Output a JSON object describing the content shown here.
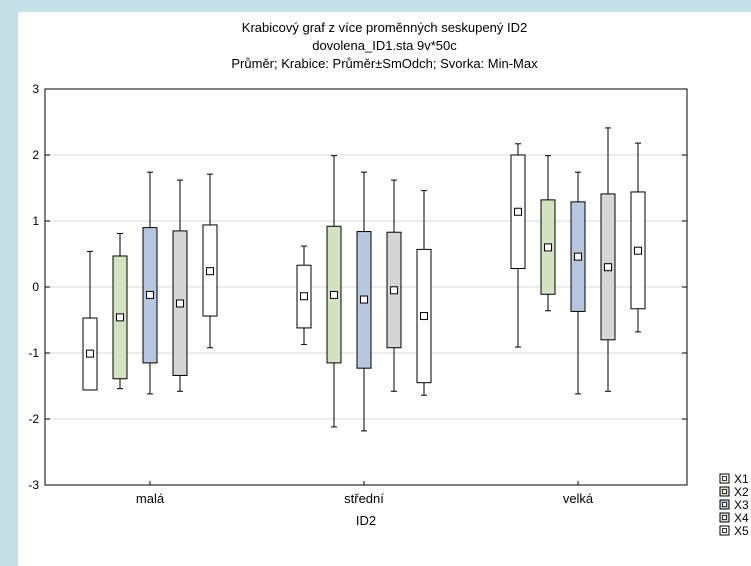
{
  "chart_data": {
    "type": "boxplot",
    "title": "Krabicový graf z více proměnných seskupený ID2",
    "subtitle": "dovolena_ID1.sta 9v*50c",
    "description": "Průměr; Krabice: Průměr±SmOdch; Svorka: Min-Max",
    "xlabel": "ID2",
    "ylabel": "",
    "ylim": [
      -3,
      3
    ],
    "yticks": [
      3,
      2,
      1,
      0,
      -1,
      -2,
      -3
    ],
    "grid": true,
    "legend_position": "bottom-right",
    "categories": [
      "malá",
      "střední",
      "velká"
    ],
    "series": [
      {
        "name": "X1",
        "color": "#ffffff",
        "values": [
          {
            "min": -1.56,
            "q1": -1.56,
            "mean": -1.01,
            "q3": -0.47,
            "max": 0.54
          },
          {
            "min": -0.87,
            "q1": -0.62,
            "mean": -0.14,
            "q3": 0.33,
            "max": 0.62
          },
          {
            "min": -0.91,
            "q1": 0.28,
            "mean": 1.14,
            "q3": 2.0,
            "max": 2.17
          }
        ]
      },
      {
        "name": "X2",
        "color": "#d4e2c2",
        "values": [
          {
            "min": -1.54,
            "q1": -1.39,
            "mean": -0.46,
            "q3": 0.47,
            "max": 0.81
          },
          {
            "min": -2.12,
            "q1": -1.15,
            "mean": -0.12,
            "q3": 0.92,
            "max": 1.99
          },
          {
            "min": -0.36,
            "q1": -0.11,
            "mean": 0.6,
            "q3": 1.32,
            "max": 1.99
          }
        ]
      },
      {
        "name": "X3",
        "color": "#b7c7e0",
        "values": [
          {
            "min": -1.62,
            "q1": -1.15,
            "mean": -0.12,
            "q3": 0.9,
            "max": 1.74
          },
          {
            "min": -2.18,
            "q1": -1.23,
            "mean": -0.19,
            "q3": 0.84,
            "max": 1.74
          },
          {
            "min": -1.62,
            "q1": -0.37,
            "mean": 0.46,
            "q3": 1.29,
            "max": 1.74
          }
        ]
      },
      {
        "name": "X4",
        "color": "#d6d6d6",
        "values": [
          {
            "min": -1.58,
            "q1": -1.34,
            "mean": -0.25,
            "q3": 0.85,
            "max": 1.62
          },
          {
            "min": -1.58,
            "q1": -0.92,
            "mean": -0.05,
            "q3": 0.83,
            "max": 1.62
          },
          {
            "min": -1.58,
            "q1": -0.8,
            "mean": 0.3,
            "q3": 1.41,
            "max": 2.41
          }
        ]
      },
      {
        "name": "X5",
        "color": "#ffffff",
        "values": [
          {
            "min": -0.92,
            "q1": -0.44,
            "mean": 0.24,
            "q3": 0.94,
            "max": 1.71
          },
          {
            "min": -1.64,
            "q1": -1.45,
            "mean": -0.44,
            "q3": 0.57,
            "max": 1.46
          },
          {
            "min": -0.68,
            "q1": -0.33,
            "mean": 0.55,
            "q3": 1.44,
            "max": 2.18
          }
        ]
      }
    ]
  }
}
